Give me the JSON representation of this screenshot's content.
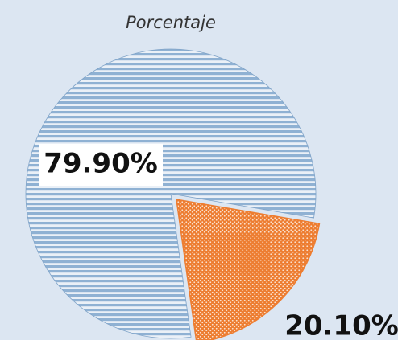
{
  "chart_data": {
    "type": "pie",
    "title": "Porcentaje",
    "values": [
      79.9,
      20.1
    ],
    "value_labels": [
      "79.90%",
      "20.10%"
    ],
    "colors": [
      "#8fb1d3",
      "#ed7d31"
    ]
  }
}
